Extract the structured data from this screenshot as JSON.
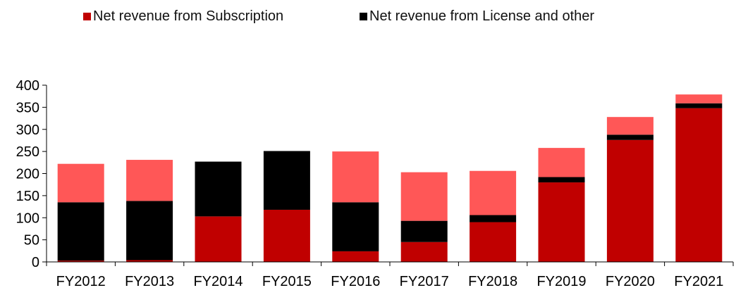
{
  "chart_data": {
    "type": "bar",
    "stacked": true,
    "categories": [
      "FY2012",
      "FY2013",
      "FY2014",
      "FY2015",
      "FY2016",
      "FY2017",
      "FY2018",
      "FY2019",
      "FY2020",
      "FY2021"
    ],
    "series": [
      {
        "name": "Net revenue from Subscription",
        "color": "#c00000",
        "values": [
          3,
          4,
          103,
          118,
          24,
          45,
          90,
          180,
          276,
          348
        ]
      },
      {
        "name": "Net revenue from License and other",
        "color": "#000000",
        "values": [
          132,
          134,
          124,
          133,
          111,
          48,
          16,
          12,
          12,
          11
        ]
      },
      {
        "name": "",
        "color": "#ff5757",
        "values": [
          87,
          93,
          0,
          0,
          115,
          110,
          100,
          66,
          40,
          20
        ]
      }
    ],
    "yticks": [
      0,
      50,
      100,
      150,
      200,
      250,
      300,
      350,
      400
    ],
    "ylim": [
      0,
      400
    ],
    "legend": [
      {
        "label": "Net revenue from Subscription",
        "color": "#c00000"
      },
      {
        "label": "Net revenue from License and other",
        "color": "#000000"
      }
    ],
    "legend_position": "top",
    "grid": false
  }
}
